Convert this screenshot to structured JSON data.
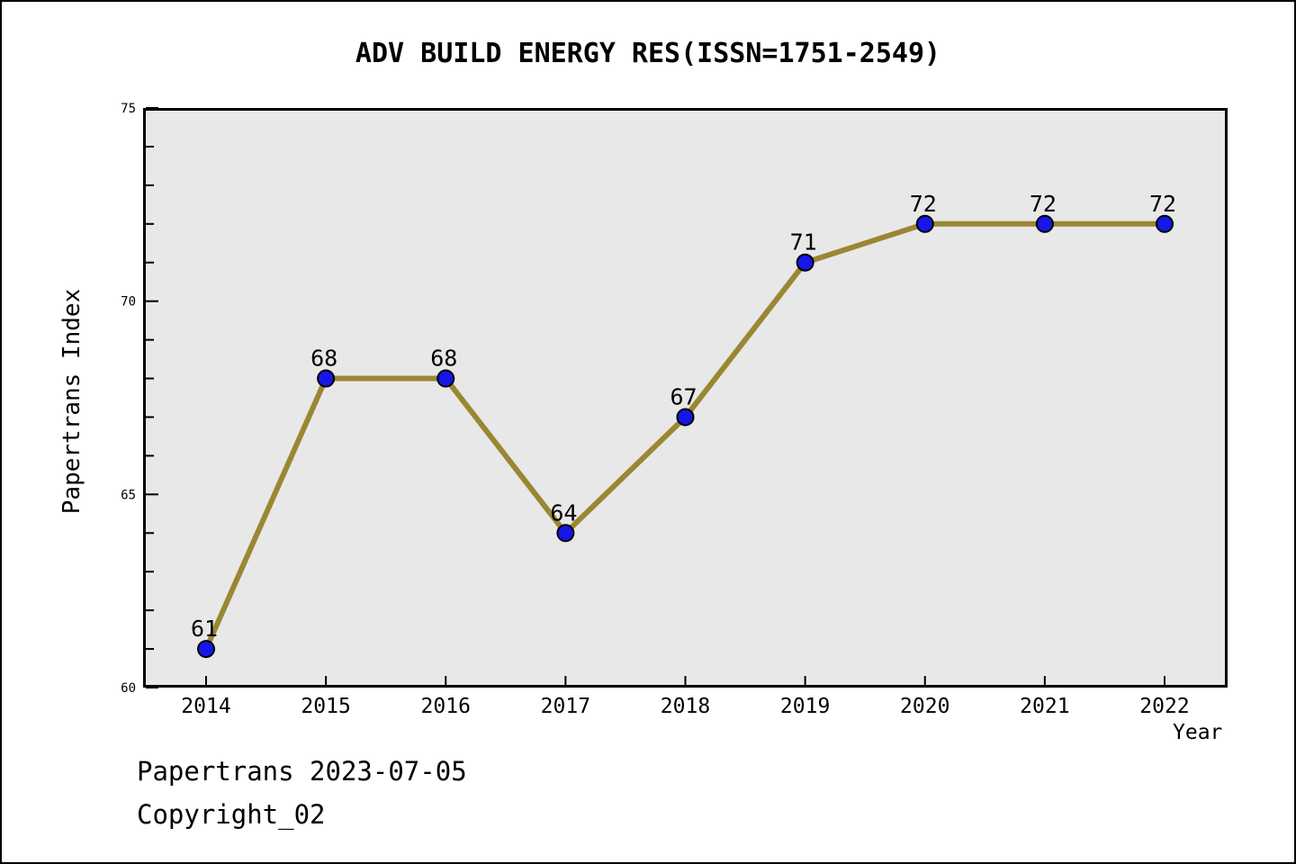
{
  "footer": {
    "line1": "Papertrans 2023-07-05",
    "line2": "Copyright_02"
  },
  "chart_data": {
    "type": "line",
    "title": "ADV BUILD ENERGY RES(ISSN=1751-2549)",
    "categories": [
      "2014",
      "2015",
      "2016",
      "2017",
      "2018",
      "2019",
      "2020",
      "2021",
      "2022"
    ],
    "values": [
      61,
      68,
      68,
      64,
      67,
      71,
      72,
      72,
      72
    ],
    "xlabel": "Year",
    "ylabel": "Papertrans Index",
    "ylim": [
      60,
      75
    ],
    "y_major_ticks": [
      60,
      65,
      70,
      75
    ],
    "y_minor_step": 1,
    "grid": "off",
    "legend": "none",
    "point_labels_shown": true,
    "colors": {
      "line": "#9A8733",
      "marker_fill": "#1616E8",
      "marker_edge": "#000000",
      "plot_bg": "#E8E8E8",
      "text": "#000000",
      "frame": "#000000"
    }
  }
}
